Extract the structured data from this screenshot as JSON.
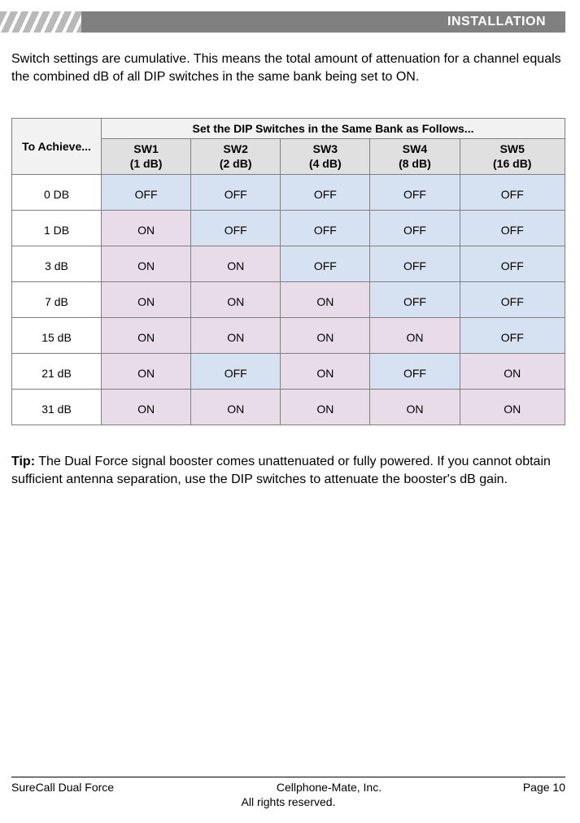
{
  "header": {
    "title": "INSTALLATION"
  },
  "intro": "Switch settings are cumulative. This means the total amount of attenuation for a channel equals the combined dB of all DIP switches in the same bank being set to ON.",
  "table": {
    "to_achieve_label": "To Achieve...",
    "set_header": "Set the DIP Switches in the Same Bank as Follows...",
    "columns": [
      {
        "line1": "SW1",
        "line2": "(1 dB)"
      },
      {
        "line1": "SW2",
        "line2": "(2 dB)"
      },
      {
        "line1": "SW3",
        "line2": "(4 dB)"
      },
      {
        "line1": "SW4",
        "line2": "(8 dB)"
      },
      {
        "line1": "SW5",
        "line2": "(16 dB)"
      }
    ],
    "rows": [
      {
        "achieve": "0 DB",
        "cells": [
          "OFF",
          "OFF",
          "OFF",
          "OFF",
          "OFF"
        ]
      },
      {
        "achieve": "1 DB",
        "cells": [
          "ON",
          "OFF",
          "OFF",
          "OFF",
          "OFF"
        ]
      },
      {
        "achieve": "3 dB",
        "cells": [
          "ON",
          "ON",
          "OFF",
          "OFF",
          "OFF"
        ]
      },
      {
        "achieve": "7 dB",
        "cells": [
          "ON",
          "ON",
          "ON",
          "OFF",
          "OFF"
        ]
      },
      {
        "achieve": "15 dB",
        "cells": [
          "ON",
          "ON",
          "ON",
          "ON",
          "OFF"
        ]
      },
      {
        "achieve": "21 dB",
        "cells": [
          "ON",
          "OFF",
          "ON",
          "OFF",
          "ON"
        ]
      },
      {
        "achieve": "31 dB",
        "cells": [
          "ON",
          "ON",
          "ON",
          "ON",
          "ON"
        ]
      }
    ],
    "colors": {
      "off_bg": "#d6e1f1",
      "on_bg": "#e8dce8",
      "header_bg": "#f2f2f2",
      "subheader_bg": "#e0e0e0",
      "border": "#808080"
    }
  },
  "tip": {
    "label": "Tip:",
    "text": " The Dual Force signal booster comes unattenuated or fully powered. If you cannot obtain sufficient antenna separation, use the DIP switches to attenuate the booster's dB gain."
  },
  "footer": {
    "left": "SureCall Dual Force",
    "center": "Cellphone-Mate, Inc.",
    "right": "Page 10",
    "bottom": "All rights reserved."
  }
}
